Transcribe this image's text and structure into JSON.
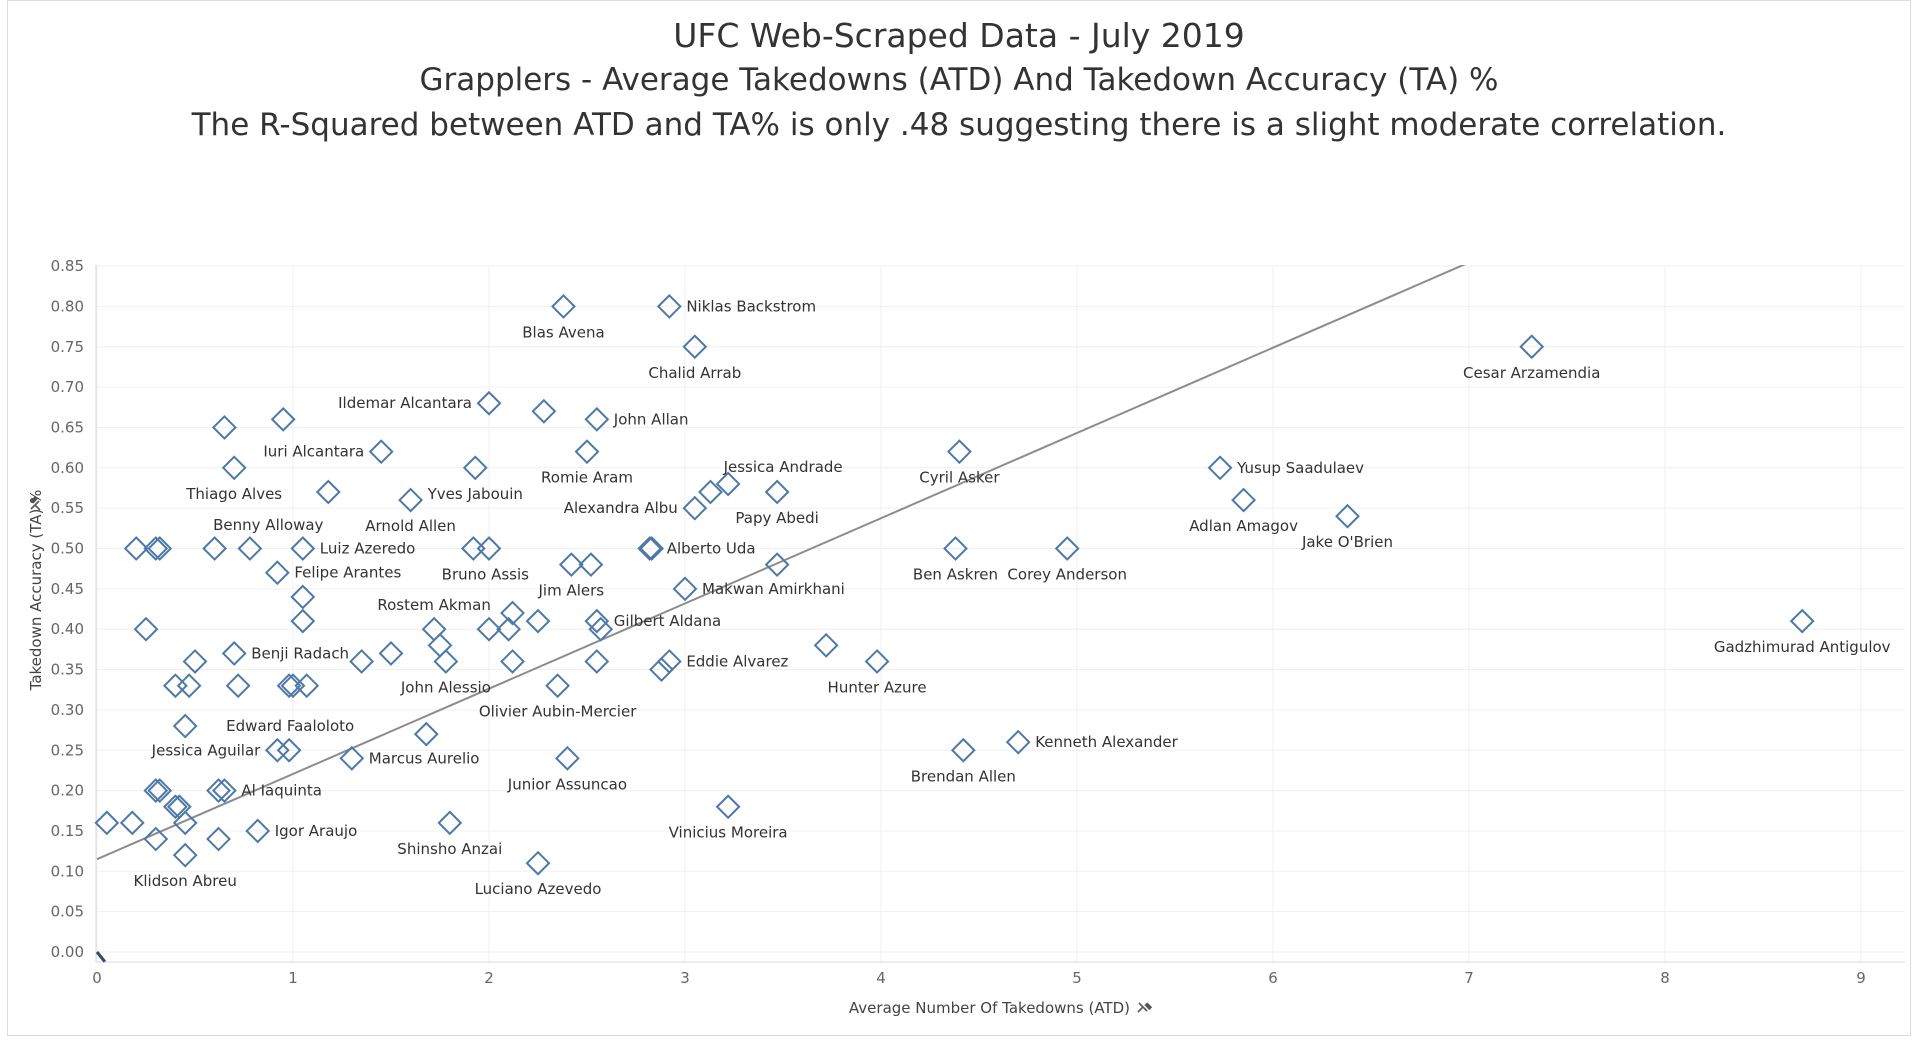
{
  "titles": {
    "line1": "UFC Web-Scraped Data - July 2019",
    "line2": "Grapplers - Average Takedowns (ATD) And Takedown Accuracy (TA) %",
    "line3": "The R-Squared between ATD and TA% is only .48 suggesting there is a slight moderate correlation."
  },
  "chart_data": {
    "type": "scatter",
    "xlabel": "Average Number Of Takedowns (ATD)",
    "ylabel": "Takedown Accuracy (TA) %",
    "xlim": [
      0,
      9.2
    ],
    "ylim": [
      -0.01,
      0.86
    ],
    "x_ticks": [
      0,
      1,
      2,
      3,
      4,
      5,
      6,
      7,
      8,
      9
    ],
    "y_ticks": [
      "0.00",
      "0.05",
      "0.10",
      "0.15",
      "0.20",
      "0.25",
      "0.30",
      "0.35",
      "0.40",
      "0.45",
      "0.50",
      "0.55",
      "0.60",
      "0.65",
      "0.70",
      "0.75",
      "0.80",
      "0.85"
    ],
    "grid": true,
    "marker": "diamond-open",
    "marker_color": "#4e79a7",
    "trend_line": {
      "color": "#8c8c8c",
      "points": [
        [
          0,
          0.115
        ],
        [
          7.1,
          0.865
        ]
      ]
    },
    "points": [
      {
        "x": 2.38,
        "y": 0.8,
        "label": "Blas Avena"
      },
      {
        "x": 2.92,
        "y": 0.8,
        "label": "Niklas Backstrom"
      },
      {
        "x": 3.05,
        "y": 0.75,
        "label": "Chalid Arrab"
      },
      {
        "x": 7.32,
        "y": 0.75,
        "label": "Cesar Arzamendia"
      },
      {
        "x": 2.0,
        "y": 0.68,
        "label": "Ildemar Alcantara"
      },
      {
        "x": 2.28,
        "y": 0.67,
        "label": ""
      },
      {
        "x": 2.55,
        "y": 0.66,
        "label": "John Allan"
      },
      {
        "x": 0.95,
        "y": 0.66,
        "label": ""
      },
      {
        "x": 0.65,
        "y": 0.65,
        "label": ""
      },
      {
        "x": 1.45,
        "y": 0.62,
        "label": "Iuri Alcantara"
      },
      {
        "x": 2.5,
        "y": 0.62,
        "label": "Romie Aram"
      },
      {
        "x": 4.4,
        "y": 0.62,
        "label": "Cyril Asker"
      },
      {
        "x": 0.7,
        "y": 0.6,
        "label": "Thiago Alves"
      },
      {
        "x": 1.93,
        "y": 0.6,
        "label": "Yves Jabouin"
      },
      {
        "x": 5.73,
        "y": 0.6,
        "label": "Yusup Saadulaev"
      },
      {
        "x": 3.22,
        "y": 0.58,
        "label": "Jessica Andrade"
      },
      {
        "x": 1.18,
        "y": 0.57,
        "label": "Benny Alloway"
      },
      {
        "x": 3.13,
        "y": 0.57,
        "label": ""
      },
      {
        "x": 3.47,
        "y": 0.57,
        "label": "Papy Abedi"
      },
      {
        "x": 1.6,
        "y": 0.56,
        "label": "Arnold Allen"
      },
      {
        "x": 3.05,
        "y": 0.55,
        "label": "Alexandra Albu"
      },
      {
        "x": 5.85,
        "y": 0.56,
        "label": "Adlan Amagov"
      },
      {
        "x": 6.38,
        "y": 0.54,
        "label": "Jake O'Brien"
      },
      {
        "x": 0.2,
        "y": 0.5,
        "label": ""
      },
      {
        "x": 0.3,
        "y": 0.5,
        "label": ""
      },
      {
        "x": 0.32,
        "y": 0.5,
        "label": ""
      },
      {
        "x": 0.6,
        "y": 0.5,
        "label": ""
      },
      {
        "x": 0.78,
        "y": 0.5,
        "label": ""
      },
      {
        "x": 1.05,
        "y": 0.5,
        "label": "Luiz Azeredo"
      },
      {
        "x": 1.92,
        "y": 0.5,
        "label": "Bruno Assis"
      },
      {
        "x": 2.0,
        "y": 0.5,
        "label": ""
      },
      {
        "x": 2.82,
        "y": 0.5,
        "label": "Alberto Uda"
      },
      {
        "x": 2.83,
        "y": 0.5,
        "label": ""
      },
      {
        "x": 4.38,
        "y": 0.5,
        "label": "Ben Askren"
      },
      {
        "x": 4.95,
        "y": 0.5,
        "label": "Corey Anderson"
      },
      {
        "x": 0.92,
        "y": 0.47,
        "label": "Felipe Arantes"
      },
      {
        "x": 2.42,
        "y": 0.48,
        "label": "Jim Alers"
      },
      {
        "x": 2.52,
        "y": 0.48,
        "label": ""
      },
      {
        "x": 3.47,
        "y": 0.48,
        "label": ""
      },
      {
        "x": 1.05,
        "y": 0.44,
        "label": ""
      },
      {
        "x": 3.0,
        "y": 0.45,
        "label": "Makwan Amirkhani"
      },
      {
        "x": 0.25,
        "y": 0.4,
        "label": ""
      },
      {
        "x": 1.05,
        "y": 0.41,
        "label": ""
      },
      {
        "x": 1.72,
        "y": 0.4,
        "label": "Rostem Akman"
      },
      {
        "x": 2.0,
        "y": 0.4,
        "label": ""
      },
      {
        "x": 2.1,
        "y": 0.4,
        "label": ""
      },
      {
        "x": 2.12,
        "y": 0.42,
        "label": ""
      },
      {
        "x": 2.25,
        "y": 0.41,
        "label": ""
      },
      {
        "x": 2.55,
        "y": 0.41,
        "label": "Gilbert Aldana"
      },
      {
        "x": 2.57,
        "y": 0.4,
        "label": ""
      },
      {
        "x": 8.7,
        "y": 0.41,
        "label": "Gadzhimurad Antigulov"
      },
      {
        "x": 0.5,
        "y": 0.36,
        "label": ""
      },
      {
        "x": 0.7,
        "y": 0.37,
        "label": "Benji Radach"
      },
      {
        "x": 1.35,
        "y": 0.36,
        "label": ""
      },
      {
        "x": 1.5,
        "y": 0.37,
        "label": ""
      },
      {
        "x": 1.75,
        "y": 0.38,
        "label": ""
      },
      {
        "x": 1.78,
        "y": 0.36,
        "label": "John Alessio"
      },
      {
        "x": 2.12,
        "y": 0.36,
        "label": ""
      },
      {
        "x": 2.55,
        "y": 0.36,
        "label": ""
      },
      {
        "x": 2.88,
        "y": 0.35,
        "label": ""
      },
      {
        "x": 2.92,
        "y": 0.36,
        "label": "Eddie Alvarez"
      },
      {
        "x": 3.72,
        "y": 0.38,
        "label": ""
      },
      {
        "x": 3.98,
        "y": 0.36,
        "label": "Hunter Azure"
      },
      {
        "x": 0.4,
        "y": 0.33,
        "label": ""
      },
      {
        "x": 0.47,
        "y": 0.33,
        "label": ""
      },
      {
        "x": 0.72,
        "y": 0.33,
        "label": ""
      },
      {
        "x": 0.98,
        "y": 0.33,
        "label": ""
      },
      {
        "x": 1.0,
        "y": 0.33,
        "label": ""
      },
      {
        "x": 1.07,
        "y": 0.33,
        "label": ""
      },
      {
        "x": 2.35,
        "y": 0.33,
        "label": "Olivier Aubin-Mercier"
      },
      {
        "x": 0.45,
        "y": 0.28,
        "label": "Edward Faaloloto"
      },
      {
        "x": 1.68,
        "y": 0.27,
        "label": ""
      },
      {
        "x": 0.92,
        "y": 0.25,
        "label": "Jessica Aguilar"
      },
      {
        "x": 0.98,
        "y": 0.25,
        "label": ""
      },
      {
        "x": 1.3,
        "y": 0.24,
        "label": "Marcus Aurelio"
      },
      {
        "x": 2.4,
        "y": 0.24,
        "label": "Junior Assuncao"
      },
      {
        "x": 4.42,
        "y": 0.25,
        "label": "Brendan Allen"
      },
      {
        "x": 4.7,
        "y": 0.26,
        "label": "Kenneth Alexander"
      },
      {
        "x": 0.3,
        "y": 0.2,
        "label": ""
      },
      {
        "x": 0.32,
        "y": 0.2,
        "label": ""
      },
      {
        "x": 0.4,
        "y": 0.18,
        "label": ""
      },
      {
        "x": 0.42,
        "y": 0.18,
        "label": ""
      },
      {
        "x": 0.62,
        "y": 0.2,
        "label": ""
      },
      {
        "x": 0.65,
        "y": 0.2,
        "label": "Al Iaquinta"
      },
      {
        "x": 3.22,
        "y": 0.18,
        "label": "Vinicius Moreira"
      },
      {
        "x": 0.05,
        "y": 0.16,
        "label": ""
      },
      {
        "x": 0.18,
        "y": 0.16,
        "label": ""
      },
      {
        "x": 0.45,
        "y": 0.16,
        "label": ""
      },
      {
        "x": 0.3,
        "y": 0.14,
        "label": ""
      },
      {
        "x": 0.62,
        "y": 0.14,
        "label": ""
      },
      {
        "x": 0.82,
        "y": 0.15,
        "label": "Igor Araujo"
      },
      {
        "x": 1.8,
        "y": 0.16,
        "label": "Shinsho Anzai"
      },
      {
        "x": 0.45,
        "y": 0.12,
        "label": "Klidson Abreu"
      },
      {
        "x": 2.25,
        "y": 0.11,
        "label": "Luciano Azevedo"
      }
    ]
  }
}
